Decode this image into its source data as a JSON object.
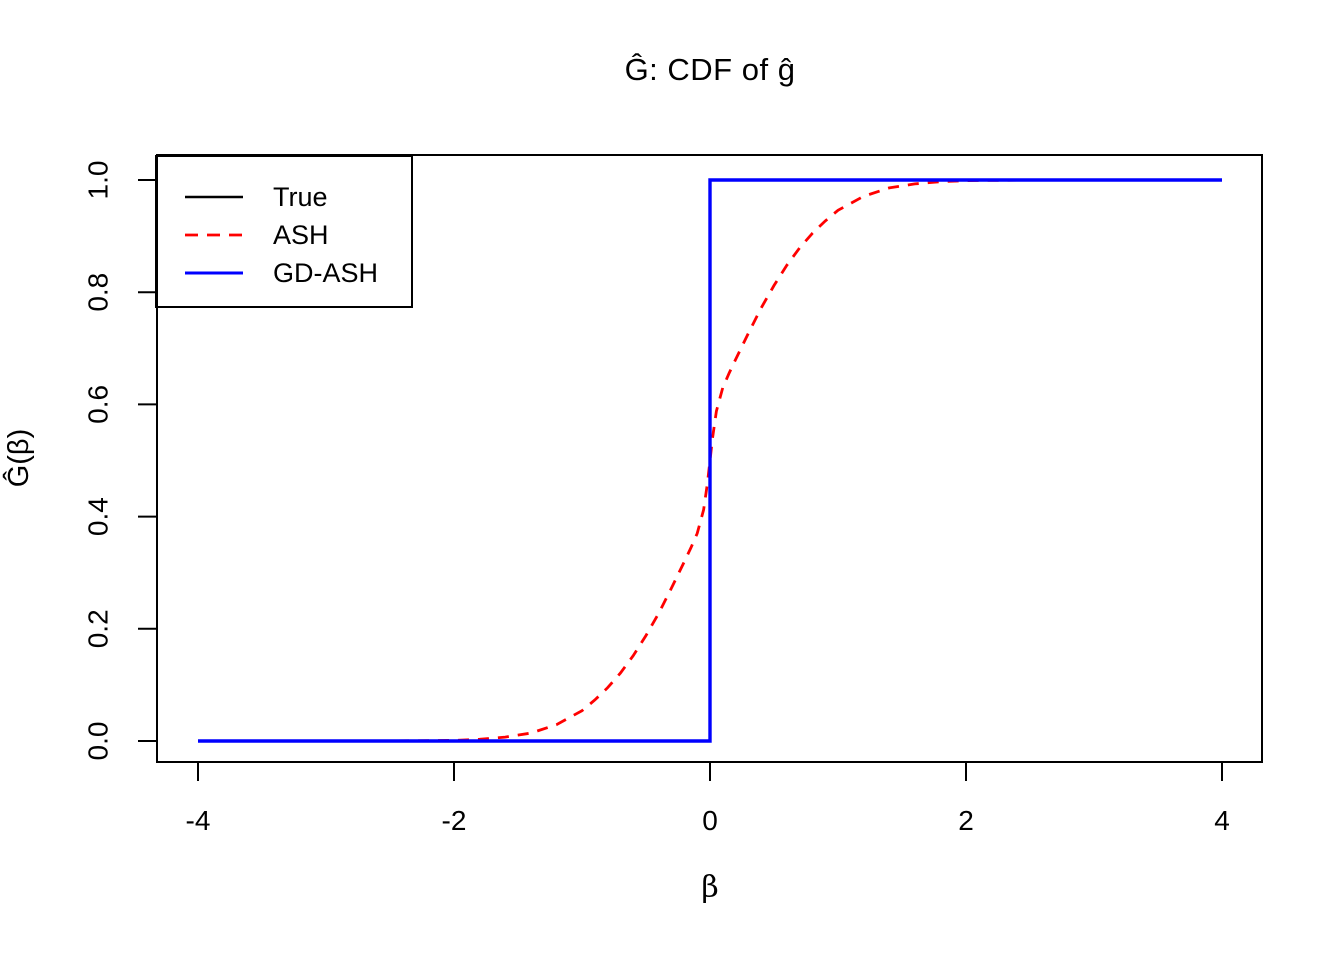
{
  "title": "Ĝ: CDF of ĝ",
  "x_axis": {
    "label": "β",
    "tick_labels": [
      "-4",
      "-2",
      "0",
      "2",
      "4"
    ]
  },
  "y_axis": {
    "label": "Ĝ(β)",
    "tick_labels": [
      "0.0",
      "0.2",
      "0.4",
      "0.6",
      "0.8",
      "1.0"
    ]
  },
  "colors": {
    "true_line": "#000000",
    "ash_line": "#FF0000",
    "gd_ash_line": "#0000FF",
    "axis": "#000000",
    "background": "#FFFFFF"
  },
  "chart_data": {
    "type": "line",
    "title": "Ĝ: CDF of ĝ",
    "xlabel": "β",
    "ylabel": "Ĝ(β)",
    "xlim": [
      -4,
      4
    ],
    "ylim": [
      0,
      1
    ],
    "x_ticks": [
      -4,
      -2,
      0,
      2,
      4
    ],
    "y_ticks": [
      0,
      0.2,
      0.4,
      0.6,
      0.8,
      1
    ],
    "grid": false,
    "legend_position": "topleft",
    "series": [
      {
        "name": "True",
        "color": "#000000",
        "style": "solid",
        "line_width": 2.4,
        "points": [
          [
            -4,
            0
          ],
          [
            0,
            0
          ],
          [
            0,
            1
          ],
          [
            4,
            1
          ]
        ]
      },
      {
        "name": "ASH",
        "color": "#FF0000",
        "style": "dashed",
        "line_width": 2.8,
        "points": [
          [
            -4,
            0
          ],
          [
            -3,
            0
          ],
          [
            -2.5,
            0
          ],
          [
            -2,
            0.001
          ],
          [
            -1.8,
            0.003
          ],
          [
            -1.6,
            0.007
          ],
          [
            -1.4,
            0.014
          ],
          [
            -1.2,
            0.029
          ],
          [
            -1,
            0.054
          ],
          [
            -0.9,
            0.073
          ],
          [
            -0.8,
            0.095
          ],
          [
            -0.7,
            0.121
          ],
          [
            -0.6,
            0.152
          ],
          [
            -0.5,
            0.188
          ],
          [
            -0.4,
            0.228
          ],
          [
            -0.3,
            0.273
          ],
          [
            -0.2,
            0.32
          ],
          [
            -0.15,
            0.344
          ],
          [
            -0.1,
            0.37
          ],
          [
            -0.05,
            0.412
          ],
          [
            -0.02,
            0.459
          ],
          [
            0,
            0.5
          ],
          [
            0.02,
            0.541
          ],
          [
            0.05,
            0.588
          ],
          [
            0.1,
            0.63
          ],
          [
            0.15,
            0.656
          ],
          [
            0.2,
            0.68
          ],
          [
            0.3,
            0.727
          ],
          [
            0.4,
            0.772
          ],
          [
            0.5,
            0.812
          ],
          [
            0.6,
            0.848
          ],
          [
            0.7,
            0.879
          ],
          [
            0.8,
            0.905
          ],
          [
            0.9,
            0.927
          ],
          [
            1,
            0.946
          ],
          [
            1.2,
            0.971
          ],
          [
            1.4,
            0.986
          ],
          [
            1.6,
            0.993
          ],
          [
            1.8,
            0.997
          ],
          [
            2,
            0.999
          ],
          [
            2.5,
            1
          ],
          [
            3,
            1
          ],
          [
            4,
            1
          ]
        ]
      },
      {
        "name": "GD-ASH",
        "color": "#0000FF",
        "style": "solid",
        "line_width": 3.4,
        "points": [
          [
            -4,
            0
          ],
          [
            0,
            0
          ],
          [
            0,
            1
          ],
          [
            4,
            1
          ]
        ]
      }
    ]
  }
}
